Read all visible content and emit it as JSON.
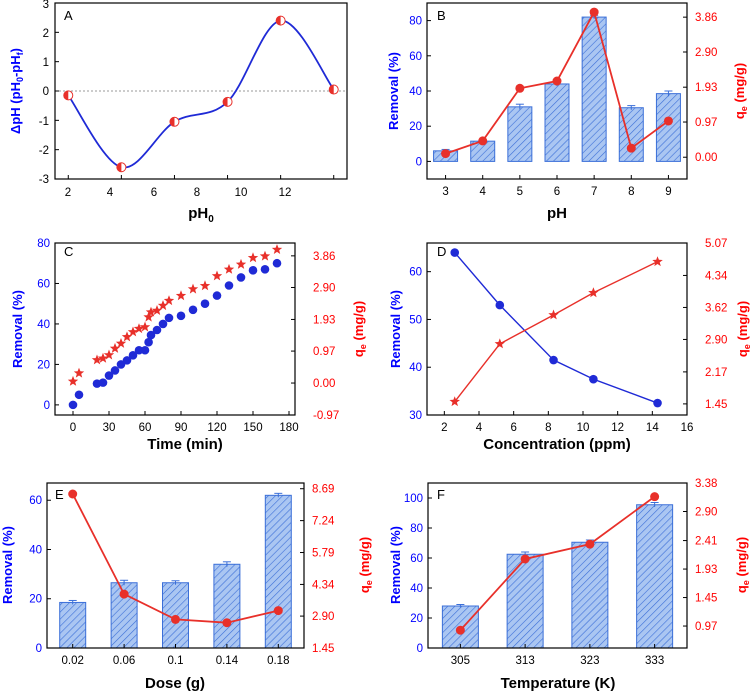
{
  "colors": {
    "left_axis": "#0000ff",
    "right_axis": "#ff0000",
    "bar_fill": "#aac6f2",
    "bar_stroke": "#3b6fd8",
    "line_blue": "#1f2ad6",
    "line_red": "#e8302a",
    "axis": "#000000"
  },
  "chart_data": [
    {
      "panel_label": "A",
      "type": "line",
      "xlabel": "pH",
      "xlabel_sub": "0",
      "ylabel": "ΔpH (pH0-pHf)",
      "ylabel_parts": {
        "a": "ΔpH (pH",
        "b": "0",
        "c": "-pH",
        "d": "f",
        "e": ")"
      },
      "x_ticks": [
        "2",
        "4",
        "6",
        "8",
        "10",
        "12"
      ],
      "y_ticks": [
        "-3",
        "-2",
        "-1",
        "0",
        "1",
        "2",
        "3"
      ],
      "xlim": [
        1.5,
        12.5
      ],
      "ylim": [
        -3,
        3
      ],
      "x": [
        2,
        4,
        6,
        8,
        10,
        12
      ],
      "y": [
        -0.15,
        -2.6,
        -1.05,
        -0.37,
        2.4,
        0.05
      ],
      "reference_line": 0
    },
    {
      "panel_label": "B",
      "type": "bar",
      "xlabel": "pH",
      "ylabel_left": "Removal (%)",
      "ylabel_right": "qe (mg/g)",
      "categories": [
        "3",
        "4",
        "5",
        "6",
        "7",
        "8",
        "9"
      ],
      "left_ticks": [
        "0",
        "20",
        "40",
        "60",
        "80"
      ],
      "right_ticks": [
        "0.00",
        "0.97",
        "1.93",
        "2.90",
        "3.86"
      ],
      "ylim_left": [
        -10,
        90
      ],
      "ylim_right": [
        -0.6,
        4.25
      ],
      "series": [
        {
          "name": "Removal (%)",
          "axis": "left",
          "kind": "bar",
          "values": [
            6,
            11.5,
            31,
            44,
            82,
            30.5,
            38.5
          ],
          "errors": [
            0.8,
            0.8,
            1.5,
            1.2,
            1,
            1.2,
            1.5
          ]
        },
        {
          "name": "qe (mg/g)",
          "axis": "right",
          "kind": "line",
          "values": [
            0.1,
            0.45,
            1.9,
            2.1,
            4.0,
            0.25,
            1.0
          ]
        }
      ]
    },
    {
      "panel_label": "C",
      "type": "scatter",
      "xlabel": "Time (min)",
      "ylabel_left": "Removal (%)",
      "ylabel_right": "qe (mg/g)",
      "x_ticks": [
        "0",
        "30",
        "60",
        "90",
        "120",
        "150",
        "180"
      ],
      "left_ticks": [
        "0",
        "20",
        "40",
        "60",
        "80"
      ],
      "right_ticks": [
        "-0.97",
        "0.00",
        "0.97",
        "1.93",
        "2.90",
        "3.86"
      ],
      "xlim": [
        -15,
        185
      ],
      "ylim_left": [
        -5,
        80
      ],
      "ylim_right": [
        -0.97,
        4.25
      ],
      "series": [
        {
          "name": "Removal (%)",
          "axis": "left",
          "marker": "circle",
          "x": [
            0,
            5,
            20,
            25,
            30,
            35,
            40,
            45,
            50,
            55,
            60,
            63,
            65,
            70,
            75,
            80,
            90,
            100,
            110,
            120,
            130,
            140,
            150,
            160,
            170
          ],
          "y": [
            0,
            5,
            10.5,
            11,
            14.5,
            17,
            20,
            22,
            24.5,
            27,
            27,
            31,
            34.5,
            37,
            40,
            43,
            44,
            47,
            50,
            54,
            59,
            63,
            66.5,
            67,
            70
          ]
        },
        {
          "name": "qe (mg/g)",
          "axis": "right",
          "marker": "star",
          "x": [
            0,
            5,
            20,
            25,
            30,
            35,
            40,
            45,
            50,
            55,
            60,
            63,
            65,
            70,
            75,
            80,
            90,
            100,
            110,
            120,
            130,
            140,
            150,
            160,
            170
          ],
          "y": [
            0.05,
            0.3,
            0.7,
            0.75,
            0.85,
            1.05,
            1.2,
            1.4,
            1.55,
            1.65,
            1.7,
            2.0,
            2.15,
            2.2,
            2.35,
            2.5,
            2.65,
            2.85,
            2.95,
            3.25,
            3.45,
            3.6,
            3.8,
            3.85,
            4.05
          ]
        }
      ]
    },
    {
      "panel_label": "D",
      "type": "line",
      "xlabel": "Concentration (ppm)",
      "ylabel_left": "Removal (%)",
      "ylabel_right": "qe (mg/g)",
      "x_ticks": [
        "2",
        "4",
        "6",
        "8",
        "10",
        "12",
        "14",
        "16"
      ],
      "left_ticks": [
        "30",
        "40",
        "50",
        "60"
      ],
      "right_ticks": [
        "1.45",
        "2.17",
        "2.90",
        "3.62",
        "4.34",
        "5.07"
      ],
      "xlim": [
        1,
        16
      ],
      "ylim_left": [
        30,
        66
      ],
      "ylim_right": [
        1.2,
        5.07
      ],
      "series": [
        {
          "name": "Removal (%)",
          "axis": "left",
          "marker": "circle",
          "x": [
            2.6,
            5.2,
            8.3,
            10.6,
            14.3
          ],
          "y": [
            64,
            53,
            41.5,
            37.5,
            32.5
          ]
        },
        {
          "name": "qe (mg/g)",
          "axis": "right",
          "marker": "star",
          "x": [
            2.6,
            5.2,
            8.3,
            10.6,
            14.3
          ],
          "y": [
            1.5,
            2.8,
            3.45,
            3.95,
            4.65
          ]
        }
      ]
    },
    {
      "panel_label": "E",
      "type": "bar",
      "xlabel": "Dose (g)",
      "ylabel_left": "Removal (%)",
      "ylabel_right": "qe (mg/g)",
      "categories": [
        "0.02",
        "0.06",
        "0.1",
        "0.14",
        "0.18"
      ],
      "left_ticks": [
        "0",
        "20",
        "40",
        "60"
      ],
      "right_ticks": [
        "1.45",
        "2.90",
        "4.34",
        "5.79",
        "7.24",
        "8.69"
      ],
      "ylim_left": [
        0,
        67
      ],
      "ylim_right": [
        1.45,
        8.95
      ],
      "series": [
        {
          "name": "Removal (%)",
          "axis": "left",
          "kind": "bar",
          "values": [
            18.5,
            26.5,
            26.5,
            34,
            62
          ],
          "errors": [
            0.8,
            1,
            0.8,
            1,
            0.8
          ]
        },
        {
          "name": "qe (mg/g)",
          "axis": "right",
          "kind": "line",
          "values": [
            8.45,
            3.9,
            2.75,
            2.6,
            3.15
          ]
        }
      ]
    },
    {
      "panel_label": "F",
      "type": "bar",
      "xlabel": "Temperature (K)",
      "ylabel_left": "Removal (%)",
      "ylabel_right": "qe (mg/g)",
      "categories": [
        "305",
        "313",
        "323",
        "333"
      ],
      "left_ticks": [
        "0",
        "20",
        "40",
        "60",
        "80",
        "100"
      ],
      "right_ticks": [
        "0.97",
        "1.45",
        "1.93",
        "2.41",
        "2.90",
        "3.38"
      ],
      "ylim_left": [
        0,
        110
      ],
      "ylim_right": [
        0.6,
        3.38
      ],
      "series": [
        {
          "name": "Removal (%)",
          "axis": "left",
          "kind": "bar",
          "values": [
            28,
            62.5,
            70.5,
            95.5
          ],
          "errors": [
            1,
            1.5,
            1.5,
            1.5
          ]
        },
        {
          "name": "qe (mg/g)",
          "axis": "right",
          "kind": "line",
          "values": [
            0.9,
            2.1,
            2.35,
            3.15
          ]
        }
      ]
    }
  ]
}
